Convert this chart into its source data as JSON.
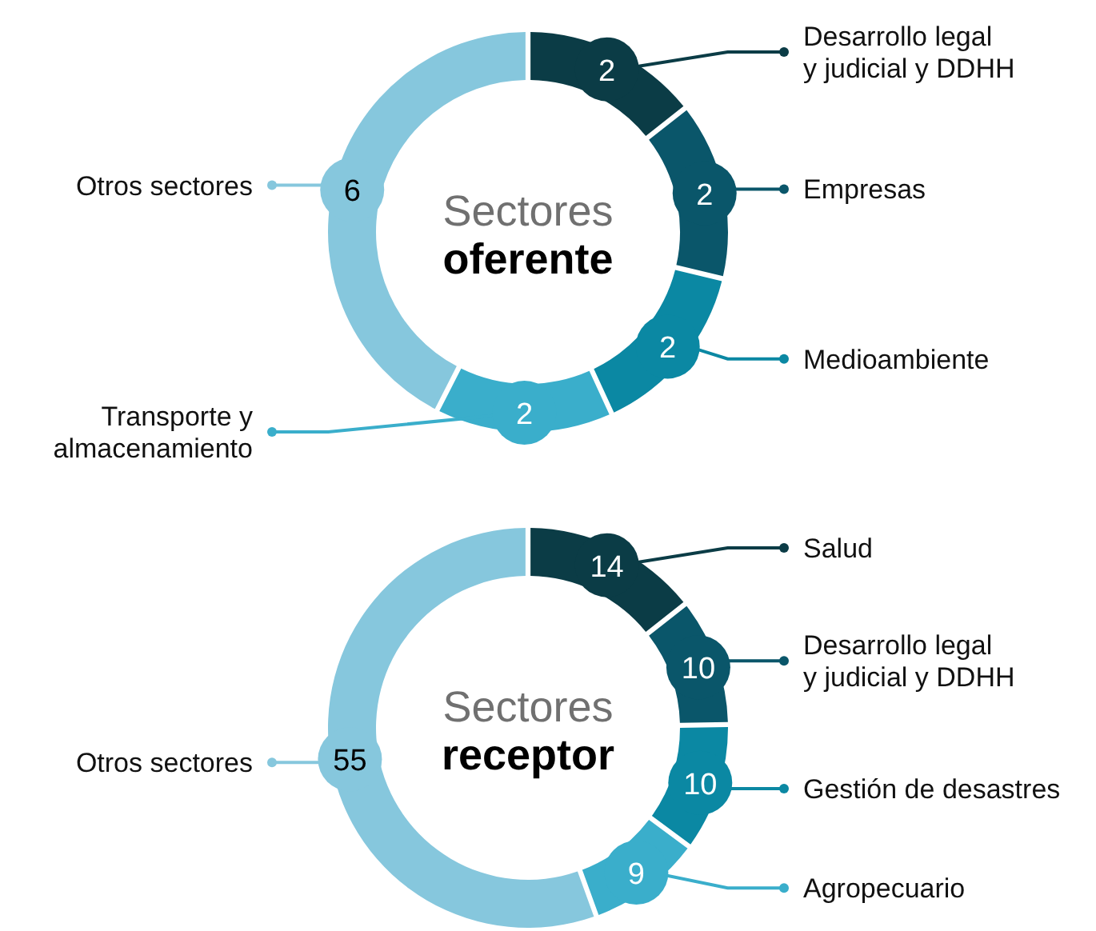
{
  "chart_data": [
    {
      "type": "donut",
      "title": "Sectores",
      "subtitle": "oferente",
      "categories": [
        "Desarrollo legal y judicial y DDHH",
        "Empresas",
        "Medioambiente",
        "Transporte y almacenamiento",
        "Otros sectores"
      ],
      "values": [
        2,
        2,
        2,
        2,
        6
      ],
      "colors": [
        "#0b3c46",
        "#0a566a",
        "#0b88a3",
        "#3aaecb",
        "#86c7dd"
      ],
      "data_labels": true,
      "legend": "right"
    },
    {
      "type": "donut",
      "title": "Sectores",
      "subtitle": "receptor",
      "categories": [
        "Salud",
        "Desarrollo legal y judicial y DDHH",
        "Gestión de desastres",
        "Agropecuario",
        "Otros sectores"
      ],
      "values": [
        14,
        10,
        10,
        9,
        55
      ],
      "colors": [
        "#0b3c46",
        "#0a566a",
        "#0b88a3",
        "#3aaecb",
        "#86c7dd"
      ],
      "data_labels": true,
      "legend": "right"
    }
  ]
}
